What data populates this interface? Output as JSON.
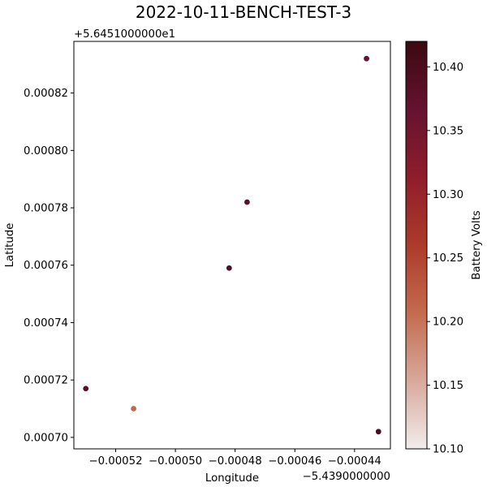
{
  "chart_data": {
    "type": "scatter",
    "title": "2022-10-11-BENCH-TEST-3",
    "xlabel": "Longitude",
    "ylabel": "Latitude",
    "x_offset_label": "−5.4390000000",
    "y_offset_label": "+5.6451000000e1",
    "xlim": [
      -0.000534,
      -0.000428
    ],
    "ylim": [
      0.000696,
      0.000838
    ],
    "x_ticks": [
      -0.00052,
      -0.0005,
      -0.00048,
      -0.00046,
      -0.00044
    ],
    "x_tick_labels": [
      "−0.00052",
      "−0.00050",
      "−0.00048",
      "−0.00046",
      "−0.00044"
    ],
    "y_ticks": [
      0.0007,
      0.00072,
      0.00074,
      0.00076,
      0.00078,
      0.0008,
      0.00082
    ],
    "y_tick_labels": [
      "0.00070",
      "0.00072",
      "0.00074",
      "0.00076",
      "0.00078",
      "0.00080",
      "0.00082"
    ],
    "points": [
      {
        "x": -0.000436,
        "y": 0.000832,
        "c": 10.36
      },
      {
        "x": -0.000476,
        "y": 0.000782,
        "c": 10.38
      },
      {
        "x": -0.000482,
        "y": 0.000759,
        "c": 10.39
      },
      {
        "x": -0.00053,
        "y": 0.000717,
        "c": 10.38
      },
      {
        "x": -0.000514,
        "y": 0.00071,
        "c": 10.21
      },
      {
        "x": -0.000432,
        "y": 0.000702,
        "c": 10.4
      }
    ],
    "colorbar": {
      "label": "Battery Volts",
      "range": [
        10.1,
        10.42
      ],
      "ticks": [
        10.1,
        10.15,
        10.2,
        10.25,
        10.3,
        10.35,
        10.4
      ],
      "tick_labels": [
        "10.10",
        "10.15",
        "10.20",
        "10.25",
        "10.30",
        "10.35",
        "10.40"
      ],
      "colormap": "amp",
      "colors": [
        "#f1edec",
        "#d8a99a",
        "#c46b4e",
        "#ac3b2a",
        "#8f1d2a",
        "#651230",
        "#3c0911"
      ]
    },
    "grid": false,
    "legend": "none"
  }
}
